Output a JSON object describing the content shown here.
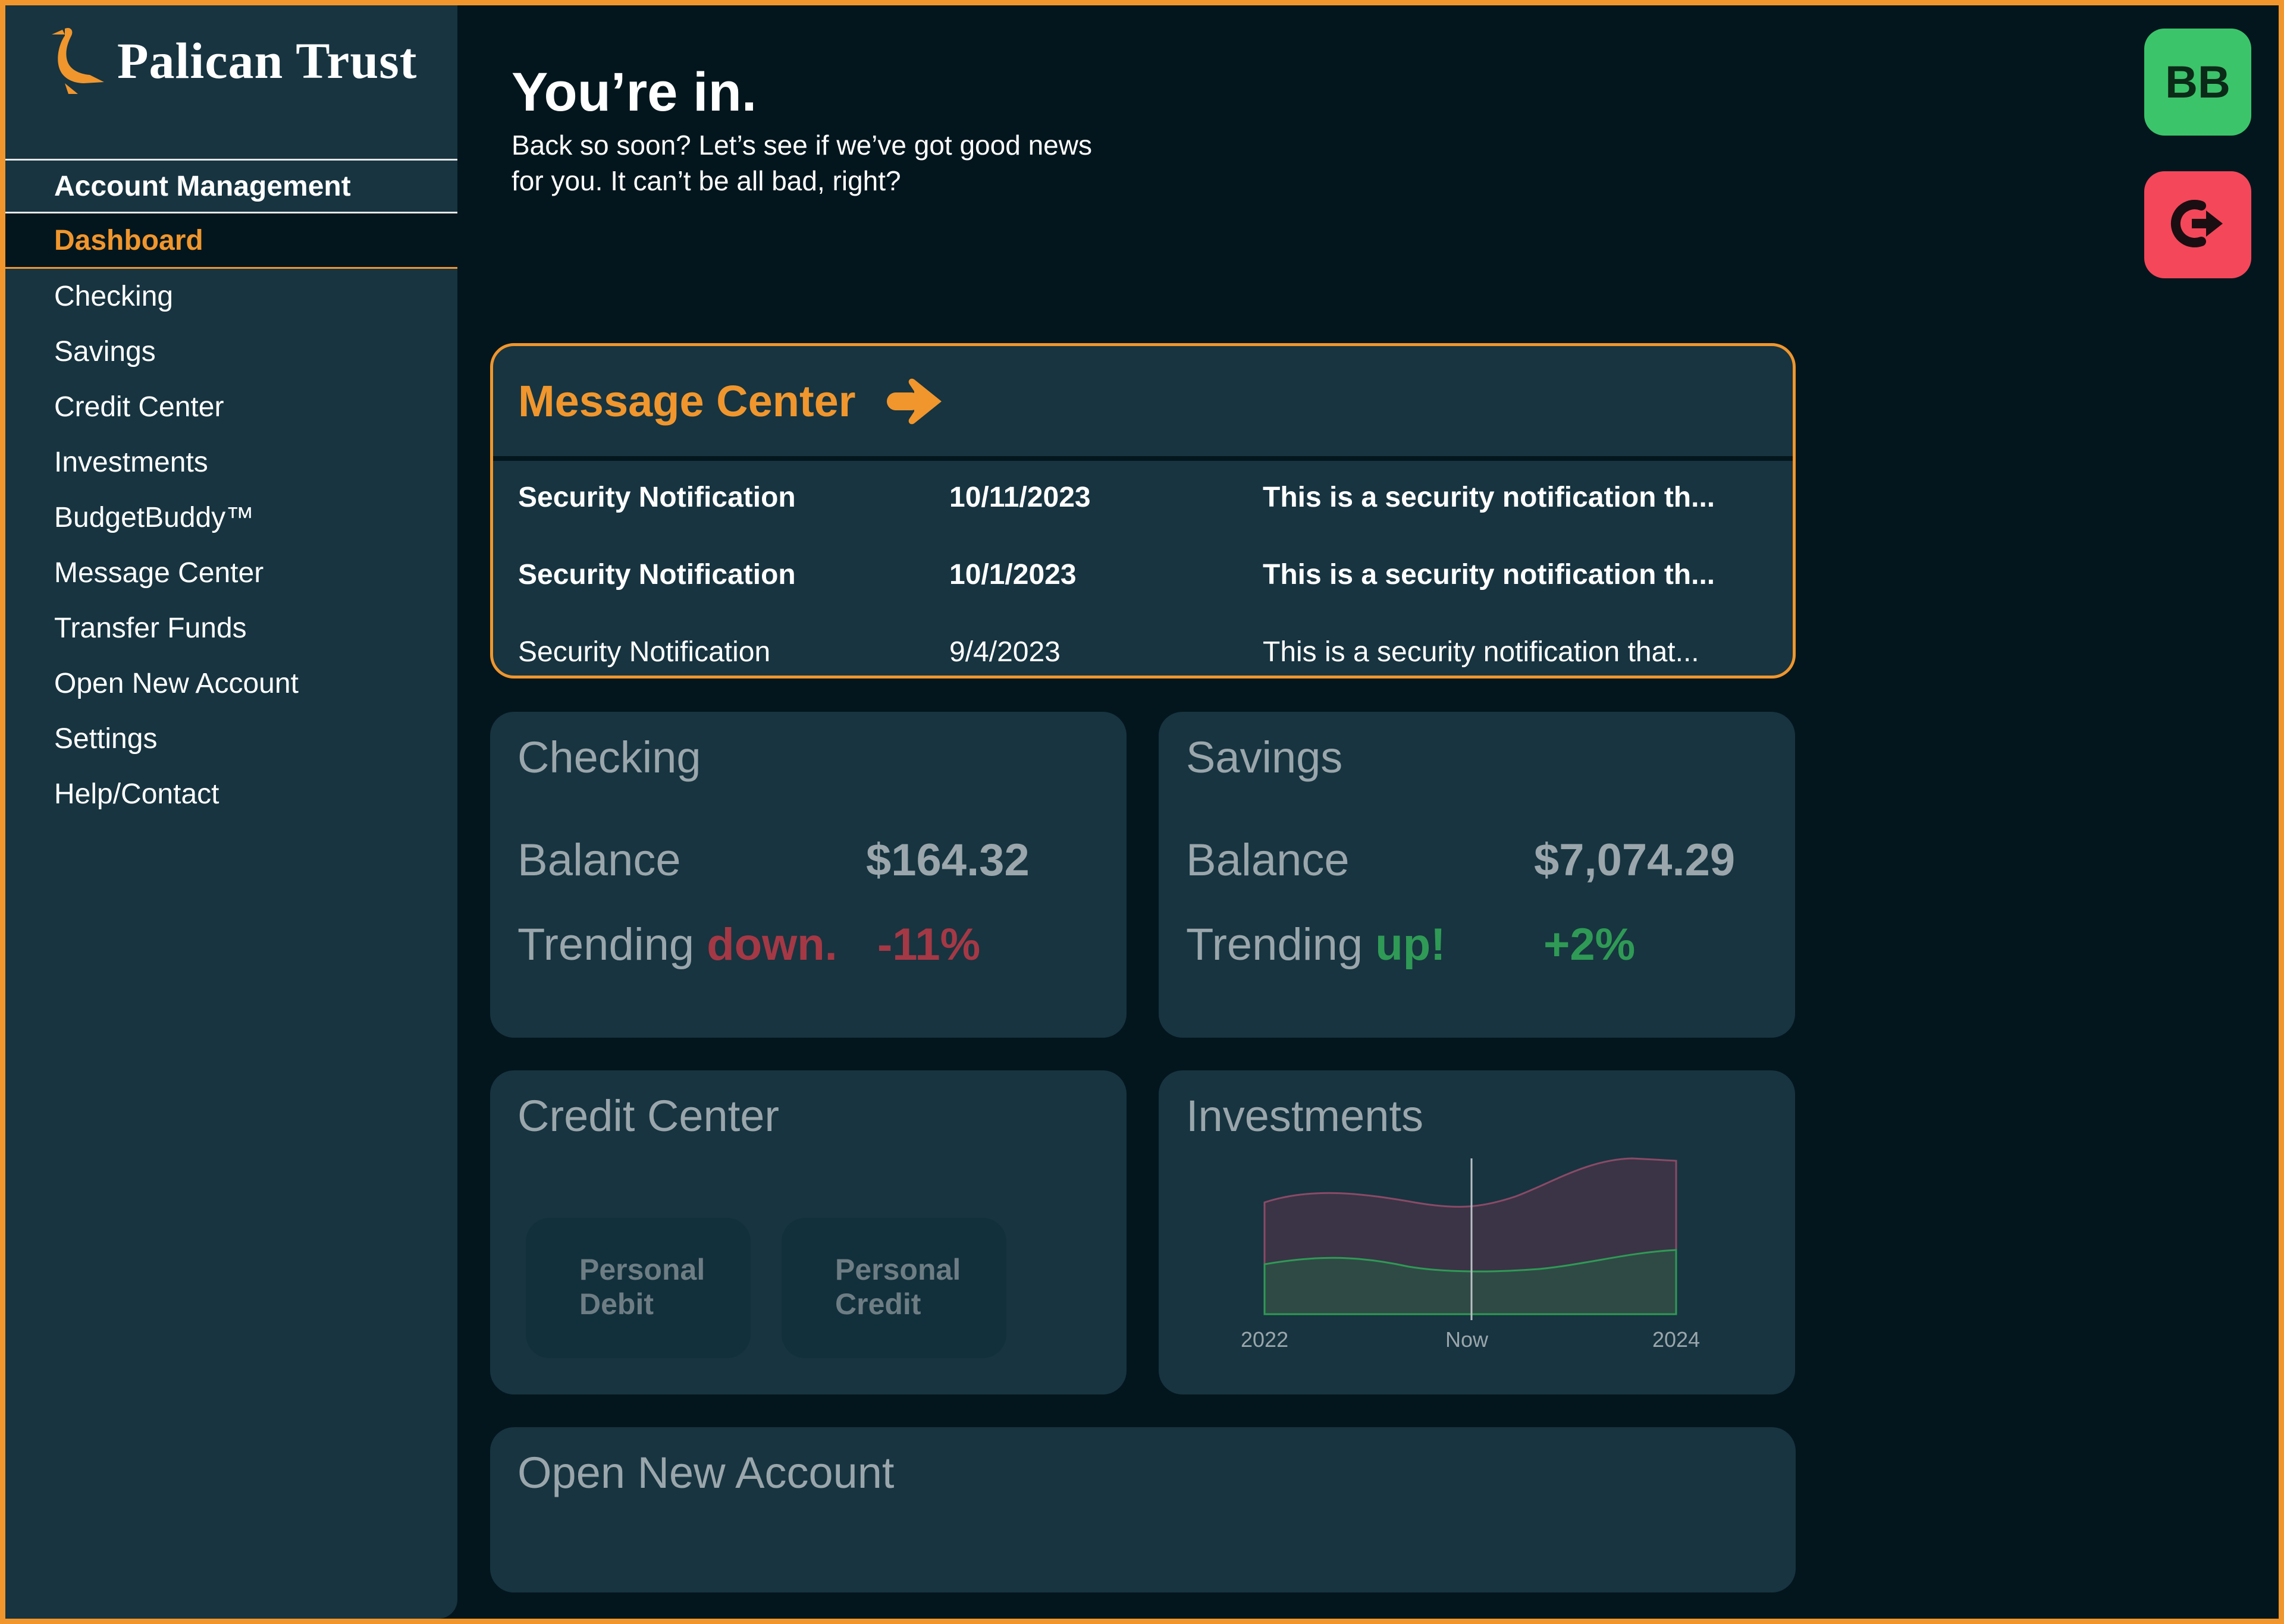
{
  "brand": {
    "name": "Palican Trust",
    "logo_icon": "pelican-icon",
    "color": "#f0962d"
  },
  "nav": {
    "section": "Account Management",
    "items": [
      {
        "label": "Dashboard",
        "active": true
      },
      {
        "label": "Checking"
      },
      {
        "label": "Savings"
      },
      {
        "label": "Credit Center"
      },
      {
        "label": "Investments"
      },
      {
        "label": "BudgetBuddy™"
      },
      {
        "label": "Message Center"
      },
      {
        "label": "Transfer Funds"
      },
      {
        "label": "Open New Account"
      },
      {
        "label": "Settings"
      },
      {
        "label": "Help/Contact"
      }
    ]
  },
  "header": {
    "title": "You’re in.",
    "subtitle": "Back so soon? Let’s see if we’ve got good news for you. It can’t be all bad, right?"
  },
  "user": {
    "initials": "BB",
    "avatar_color": "#3cc46a",
    "logout_icon": "logout-icon",
    "logout_color": "#f4475a"
  },
  "message_center": {
    "title": "Message Center",
    "icon": "arrow-right-icon",
    "messages": [
      {
        "subject": "Security Notification",
        "date": "10/11/2023",
        "preview": "This is a security notification th...",
        "unread": true
      },
      {
        "subject": "Security Notification",
        "date": "10/1/2023",
        "preview": "This is a security notification th...",
        "unread": true
      },
      {
        "subject": "Security Notification",
        "date": "9/4/2023",
        "preview": "This is a security notification that...",
        "unread": false
      }
    ]
  },
  "checking": {
    "title": "Checking",
    "balance_label": "Balance",
    "balance": "$164.32",
    "trend_label": "Trending",
    "trend_word": "down.",
    "trend_pct": "-11%",
    "trend_color": "#a53845"
  },
  "savings": {
    "title": "Savings",
    "balance_label": "Balance",
    "balance": "$7,074.29",
    "trend_label": "Trending",
    "trend_word": "up!",
    "trend_pct": "+2%",
    "trend_color": "#2f9a55"
  },
  "credit_center": {
    "title": "Credit Center",
    "buttons": [
      {
        "line1": "Personal",
        "line2": "Debit"
      },
      {
        "line1": "Personal",
        "line2": "Credit"
      }
    ]
  },
  "investments": {
    "title": "Investments",
    "chart_data": {
      "type": "area",
      "x": [
        "2022",
        "Now",
        "2024"
      ],
      "series": [
        {
          "color": "#3a3446"
        },
        {
          "color": "#2f4a45"
        }
      ]
    }
  },
  "open_account": {
    "title": "Open New Account"
  }
}
